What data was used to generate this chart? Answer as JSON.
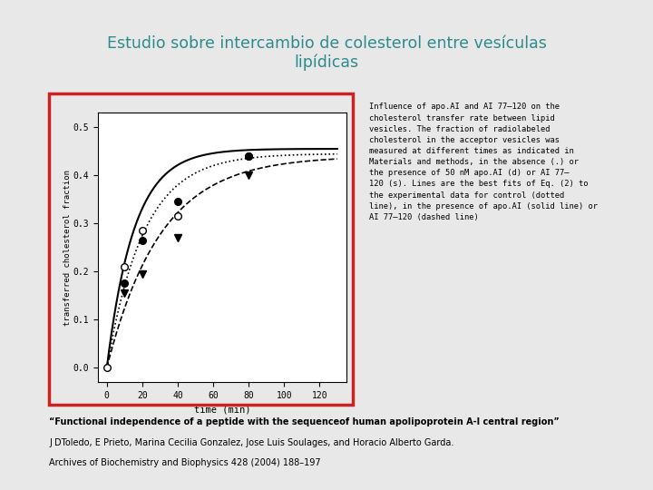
{
  "title_line1": "Estudio sobre intercambio de colesterol entre vesículas",
  "title_line2": "lipídicas",
  "title_color": "#2e8b8b",
  "bg_color": "#e8e8e8",
  "plot_bg": "#ffffff",
  "xlabel": "time (min)",
  "ylabel": "transferred cholesterol fraction",
  "xlim": [
    -5,
    135
  ],
  "ylim": [
    -0.03,
    0.53
  ],
  "xticks": [
    0,
    20,
    40,
    60,
    80,
    100,
    120
  ],
  "yticks": [
    0.0,
    0.1,
    0.2,
    0.3,
    0.4,
    0.5
  ],
  "control_points_x": [
    0,
    10,
    20,
    40,
    80
  ],
  "control_points_y": [
    0.0,
    0.21,
    0.285,
    0.315,
    0.44
  ],
  "apoAI_points_x": [
    10,
    20,
    40,
    80
  ],
  "apoAI_points_y": [
    0.175,
    0.265,
    0.345,
    0.44
  ],
  "AI77_points_x": [
    10,
    20,
    40,
    80
  ],
  "AI77_points_y": [
    0.155,
    0.195,
    0.27,
    0.4
  ],
  "A_apoAI": 0.455,
  "k_apoAI": 0.065,
  "A_ctrl": 0.445,
  "k_ctrl": 0.048,
  "A_ai77": 0.44,
  "k_ai77": 0.033,
  "annotation_text": "Influence of apo.AI and AI 77–120 on the\ncholesterol transfer rate between lipid\nvesicles. The fraction of radiolabeled\ncholesterol in the acceptor vesicles was\nmeasured at different times as indicated in\nMaterials and methods, in the absence (.) or\nthe presence of 50 nM apo.AI (d) or AI 77–\n120 (s). Lines are the best fits of Eq. (2) to\nthe experimental data for control (dotted\nline), in the presence of apo.AI (solid line) or\nAI 77–120 (dashed line)",
  "citation_bold": "“Functional independence of a peptide with the sequenceof human apolipoprotein A-I central region”",
  "citation_line2": "J DToledo, E Prieto, Marina Cecilia Gonzalez, Jose Luis Soulages, and Horacio Alberto Garda.",
  "citation_line3": "Archives of Biochemistry and Biophysics 428 (2004) 188–197"
}
